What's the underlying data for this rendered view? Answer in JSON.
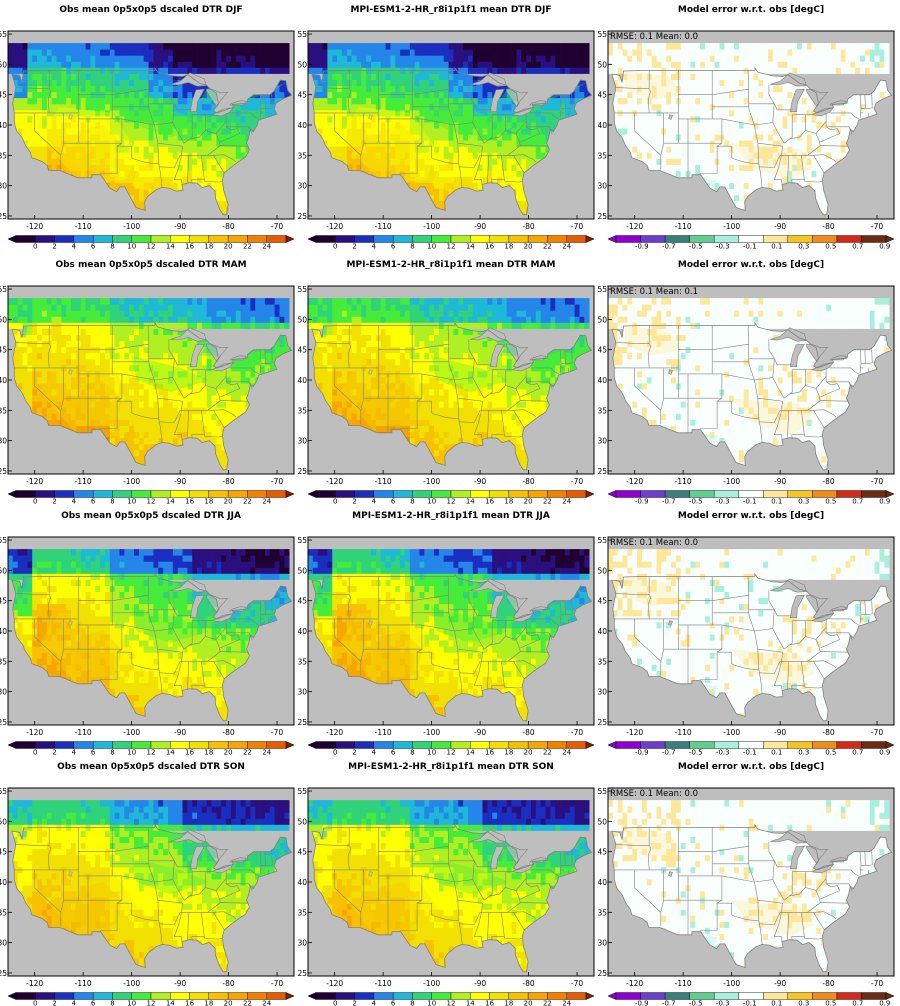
{
  "colors": {
    "ocean": "#bebebe",
    "border": "#808080",
    "dtr_levels": [
      "#200030",
      "#2a0f7f",
      "#1a2ec0",
      "#2486e8",
      "#1fb8d8",
      "#30d27a",
      "#46ec3a",
      "#b0f020",
      "#ffff00",
      "#f2e000",
      "#f7c000",
      "#f7a600",
      "#f08200",
      "#e85c00",
      "#7a2400"
    ],
    "err_levels": [
      "#8d00cf",
      "#6b3fcb",
      "#3b7f7b",
      "#5fcf8d",
      "#a8f0dd",
      "#f8fffd",
      "#ffe79a",
      "#f3c623",
      "#f28b18",
      "#d22a19",
      "#6b2b14"
    ]
  },
  "colorbars": {
    "dtr": {
      "tick_labels": [
        "0",
        "2",
        "4",
        "6",
        "8",
        "10",
        "12",
        "14",
        "16",
        "18",
        "20",
        "22",
        "24"
      ]
    },
    "err": {
      "tick_labels": [
        "-0.9",
        "-0.7",
        "-0.5",
        "-0.3",
        "-0.1",
        "0.1",
        "0.3",
        "0.5",
        "0.7",
        "0.9"
      ]
    }
  },
  "axes": {
    "x_ticks": [
      "-120",
      "-110",
      "-100",
      "-90",
      "-80",
      "-70"
    ],
    "y_ticks": [
      "25",
      "30",
      "35",
      "40",
      "45",
      "50",
      "55"
    ],
    "lon_range": [
      -125.5,
      -66.5
    ],
    "lat_range": [
      24.5,
      55.5
    ]
  },
  "rows": [
    {
      "season": "DJF",
      "titles": [
        "Obs mean 0p5x0p5 dscaled DTR DJF",
        "MPI-ESM1-2-HR_r8i1p1f1 mean DTR DJF",
        "Model error w.r.t. obs [degC]"
      ],
      "stats": "RMSE: 0.1   Mean: 0.0"
    },
    {
      "season": "MAM",
      "titles": [
        "Obs mean 0p5x0p5 dscaled DTR MAM",
        "MPI-ESM1-2-HR_r8i1p1f1 mean DTR MAM",
        "Model error w.r.t. obs [degC]"
      ],
      "stats": "RMSE: 0.1   Mean: 0.1"
    },
    {
      "season": "JJA",
      "titles": [
        "Obs mean 0p5x0p5 dscaled DTR JJA",
        "MPI-ESM1-2-HR_r8i1p1f1 mean DTR JJA",
        "Model error w.r.t. obs [degC]"
      ],
      "stats": "RMSE: 0.1   Mean: 0.0"
    },
    {
      "season": "SON",
      "titles": [
        "Obs mean 0p5x0p5 dscaled DTR SON",
        "MPI-ESM1-2-HR_r8i1p1f1 mean DTR SON",
        "Model error w.r.t. obs [degC]"
      ],
      "stats": "RMSE: 0.1   Mean: 0.0"
    }
  ]
}
